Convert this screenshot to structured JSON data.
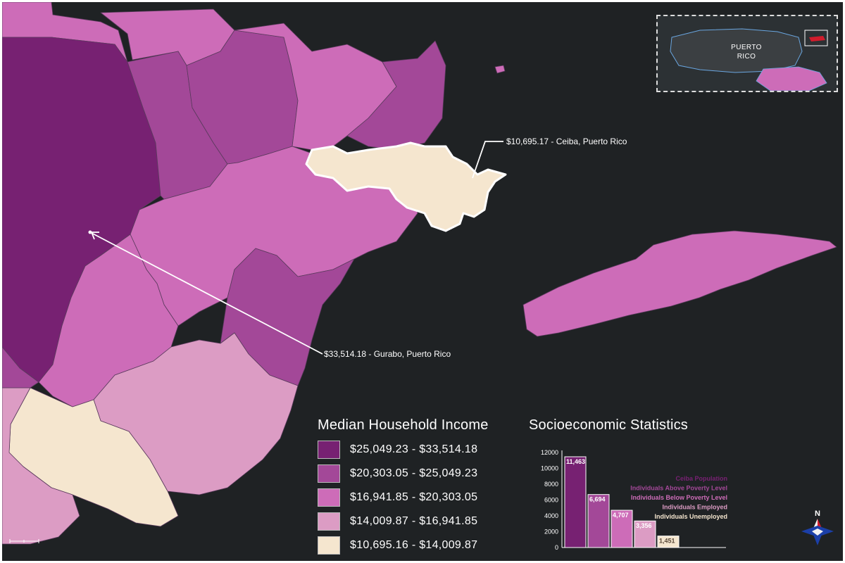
{
  "legend": {
    "title": "Median Household Income",
    "classes": [
      {
        "label": "$25,049.23 - $33,514.18",
        "color": "#772172"
      },
      {
        "label": "$20,303.05 - $25,049.23",
        "color": "#a34898"
      },
      {
        "label": "$16,941.85 - $20,303.05",
        "color": "#cd6cb8"
      },
      {
        "label": "$14,009.87 - $16,941.85",
        "color": "#dc9cc4"
      },
      {
        "label": "$10,695.16 - $14,009.87",
        "color": "#f5e6cf"
      }
    ]
  },
  "annotations": {
    "ceiba": "$10,695.17 - Ceiba, Puerto Rico",
    "gurabo": "$33,514.18 - Gurabo, Puerto Rico"
  },
  "inset": {
    "label_line1": "PUERTO",
    "label_line2": "RICO"
  },
  "compass": {
    "north_label": "N"
  },
  "chart_data": {
    "type": "bar",
    "title": "Socioeconomic Statistics",
    "ylim": [
      0,
      12000
    ],
    "yticks": [
      "0",
      "2000",
      "4000",
      "6000",
      "8000",
      "10000",
      "12000"
    ],
    "series": [
      {
        "name": "Ceiba Population",
        "value": 11463,
        "value_label": "11,463",
        "color": "#772172"
      },
      {
        "name": "Individuals Above Poverty Level",
        "value": 6694,
        "value_label": "6,694",
        "color": "#a34898"
      },
      {
        "name": "Individuals Below Poverty Level",
        "value": 4707,
        "value_label": "4,707",
        "color": "#cd6cb8"
      },
      {
        "name": "Individuals Employed",
        "value": 3356,
        "value_label": "3,356",
        "color": "#dc9cc4"
      },
      {
        "name": "Individuals Unemployed",
        "value": 1451,
        "value_label": "1,451",
        "color": "#f5e6cf"
      }
    ]
  }
}
